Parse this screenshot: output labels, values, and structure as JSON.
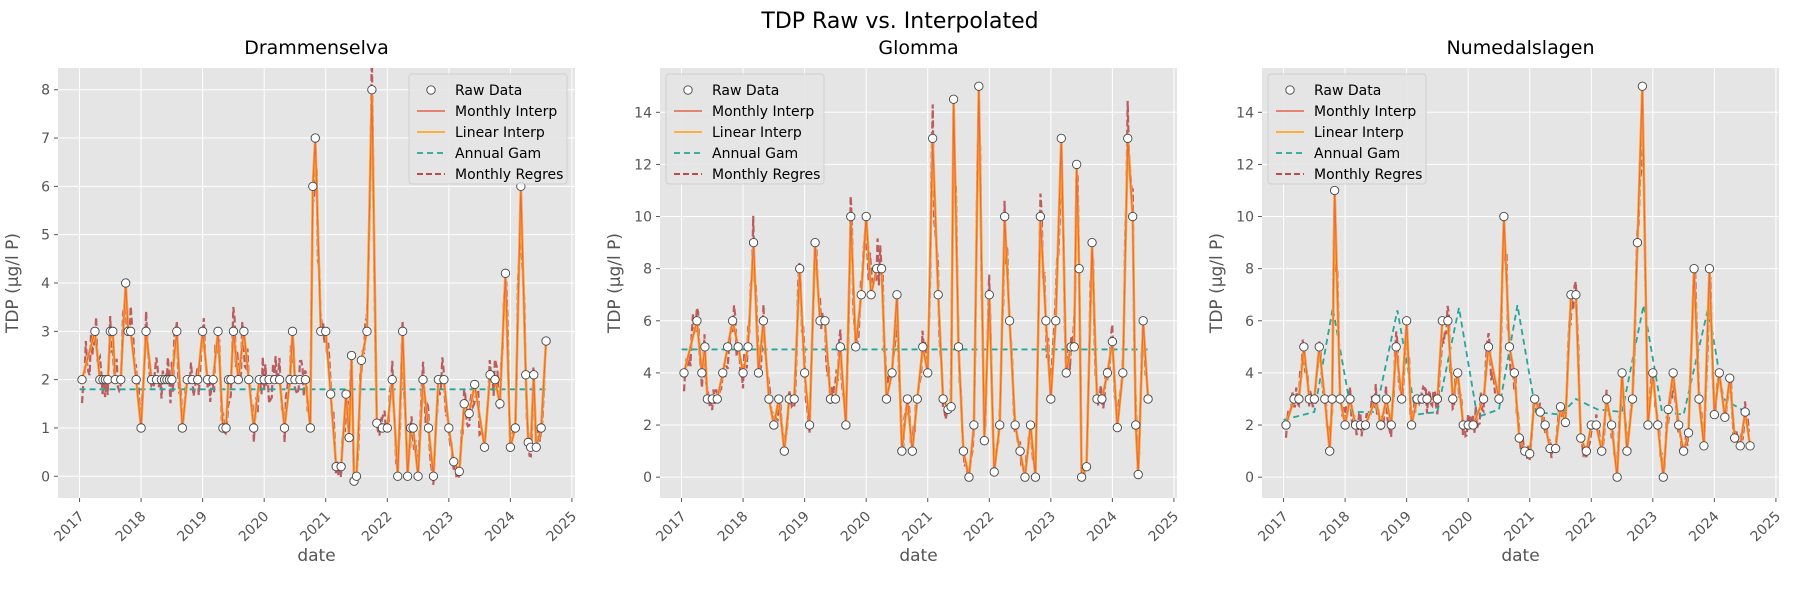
{
  "figure": {
    "suptitle": "TDP Raw vs. Interpolated"
  },
  "colors": {
    "raw": "#ffffff",
    "raw_edge": "#444444",
    "monthly_interp": "#e5624f",
    "linear_interp": "#ffa726",
    "annual_gam": "#26a69a",
    "monthly_regres": "#b84c4c",
    "panel_bg": "#e5e5e5",
    "grid": "#ffffff"
  },
  "legend": {
    "placement": "upper",
    "entries": [
      "Raw Data",
      "Monthly Interp",
      "Linear Interp",
      "Annual Gam",
      "Monthly Regres"
    ]
  },
  "chart_data": [
    {
      "type": "line",
      "title": "Drammenselva",
      "xlabel": "date",
      "ylabel": "TDP (µg/l P)",
      "xlim": [
        2016.65,
        2025.05
      ],
      "ylim": [
        -0.45,
        8.45
      ],
      "xticks": [
        2017,
        2018,
        2019,
        2020,
        2021,
        2022,
        2023,
        2024,
        2025
      ],
      "yticks": [
        0,
        1,
        2,
        3,
        4,
        5,
        6,
        7,
        8
      ],
      "legend_position": "top-right",
      "raw": {
        "x": [
          2017.04,
          2017.25,
          2017.33,
          2017.38,
          2017.42,
          2017.46,
          2017.5,
          2017.54,
          2017.58,
          2017.67,
          2017.75,
          2017.79,
          2017.83,
          2017.92,
          2018.0,
          2018.08,
          2018.17,
          2018.25,
          2018.33,
          2018.38,
          2018.42,
          2018.46,
          2018.5,
          2018.58,
          2018.67,
          2018.75,
          2018.83,
          2018.92,
          2019.0,
          2019.08,
          2019.17,
          2019.25,
          2019.33,
          2019.38,
          2019.42,
          2019.46,
          2019.5,
          2019.58,
          2019.67,
          2019.75,
          2019.83,
          2019.92,
          2020.0,
          2020.08,
          2020.17,
          2020.25,
          2020.33,
          2020.42,
          2020.46,
          2020.5,
          2020.58,
          2020.67,
          2020.75,
          2020.79,
          2020.83,
          2020.92,
          2021.0,
          2021.08,
          2021.17,
          2021.25,
          2021.33,
          2021.38,
          2021.42,
          2021.46,
          2021.5,
          2021.58,
          2021.67,
          2021.75,
          2021.83,
          2021.92,
          2022.0,
          2022.08,
          2022.17,
          2022.25,
          2022.33,
          2022.38,
          2022.42,
          2022.5,
          2022.58,
          2022.67,
          2022.75,
          2022.83,
          2022.92,
          2023.0,
          2023.08,
          2023.17,
          2023.25,
          2023.33,
          2023.42,
          2023.58,
          2023.67,
          2023.75,
          2023.83,
          2023.92,
          2024.0,
          2024.08,
          2024.17,
          2024.25,
          2024.29,
          2024.33,
          2024.38,
          2024.42,
          2024.5,
          2024.58
        ],
        "y": [
          2,
          3,
          2,
          2,
          2,
          2,
          3,
          3,
          2,
          2,
          4,
          3,
          3,
          2,
          1,
          3,
          2,
          2,
          2,
          2,
          2,
          2,
          2,
          3,
          1,
          2,
          2,
          2,
          3,
          2,
          2,
          3,
          1,
          1,
          2,
          2,
          3,
          2,
          3,
          2,
          1,
          2,
          2,
          2,
          2,
          2,
          1,
          2,
          3,
          2,
          2,
          2,
          1,
          6,
          7,
          3,
          3,
          1.7,
          0.2,
          0.2,
          1.7,
          0.8,
          2.5,
          -0.1,
          0,
          2.4,
          3,
          8,
          1.1,
          1,
          1,
          2,
          0,
          3,
          0,
          1,
          1,
          0,
          2,
          1,
          0,
          2,
          2,
          1,
          0.3,
          0.1,
          1.5,
          1.3,
          1.9,
          0.6,
          2.1,
          2.0,
          1.5,
          4.2,
          0.6,
          1,
          6,
          2.1,
          0.7,
          0.6,
          2.1,
          0.6,
          1,
          2.8
        ]
      },
      "annual_gam": {
        "x": [
          2017.0,
          2020.5,
          2024.58
        ],
        "y": [
          1.8,
          1.8,
          1.8
        ]
      }
    },
    {
      "type": "line",
      "title": "Glomma",
      "xlabel": "date",
      "ylabel": "TDP (µg/l P)",
      "xlim": [
        2016.65,
        2025.05
      ],
      "ylim": [
        -0.8,
        15.7
      ],
      "xticks": [
        2017,
        2018,
        2019,
        2020,
        2021,
        2022,
        2023,
        2024,
        2025
      ],
      "yticks": [
        0,
        2,
        4,
        6,
        8,
        10,
        12,
        14
      ],
      "legend_position": "top-left",
      "raw": {
        "x": [
          2017.04,
          2017.25,
          2017.33,
          2017.38,
          2017.42,
          2017.5,
          2017.58,
          2017.67,
          2017.75,
          2017.83,
          2017.92,
          2018.0,
          2018.08,
          2018.17,
          2018.25,
          2018.33,
          2018.42,
          2018.5,
          2018.58,
          2018.67,
          2018.75,
          2018.83,
          2018.92,
          2019.0,
          2019.08,
          2019.17,
          2019.25,
          2019.33,
          2019.42,
          2019.5,
          2019.58,
          2019.67,
          2019.75,
          2019.83,
          2019.92,
          2020.0,
          2020.08,
          2020.17,
          2020.25,
          2020.33,
          2020.42,
          2020.5,
          2020.58,
          2020.67,
          2020.75,
          2020.83,
          2020.92,
          2021.0,
          2021.08,
          2021.17,
          2021.25,
          2021.33,
          2021.38,
          2021.42,
          2021.5,
          2021.58,
          2021.67,
          2021.75,
          2021.83,
          2021.92,
          2022.0,
          2022.08,
          2022.17,
          2022.25,
          2022.33,
          2022.42,
          2022.5,
          2022.58,
          2022.67,
          2022.75,
          2022.83,
          2022.92,
          2023.0,
          2023.08,
          2023.17,
          2023.25,
          2023.33,
          2023.38,
          2023.42,
          2023.46,
          2023.5,
          2023.58,
          2023.67,
          2023.75,
          2023.83,
          2023.92,
          2024.0,
          2024.08,
          2024.17,
          2024.25,
          2024.33,
          2024.38,
          2024.42,
          2024.5,
          2024.58
        ],
        "y": [
          4,
          6,
          4,
          5,
          3,
          3,
          3,
          4,
          5,
          6,
          5,
          4,
          5,
          9,
          4,
          6,
          3,
          2,
          3,
          1,
          3,
          3,
          8,
          4,
          2,
          9,
          6,
          6,
          3,
          3,
          5,
          2,
          10,
          5,
          7,
          10,
          7,
          8,
          8,
          3,
          4,
          7,
          1,
          3,
          1,
          3,
          5,
          4,
          13,
          7,
          3,
          2.6,
          2.7,
          14.5,
          5,
          1,
          0,
          2,
          15,
          1.4,
          7,
          0.2,
          2,
          10,
          6,
          2,
          1,
          0,
          2,
          0,
          10,
          6,
          3,
          6,
          13,
          4,
          5,
          5,
          12,
          8,
          0,
          0.4,
          9,
          3,
          3,
          4,
          5.2,
          1.9,
          4,
          13,
          10,
          2,
          0.1,
          6,
          3
        ]
      },
      "annual_gam": {
        "x": [
          2017.0,
          2024.58
        ],
        "y": [
          4.9,
          4.9
        ]
      }
    },
    {
      "type": "line",
      "title": "Numedalslagen",
      "xlabel": "date",
      "ylabel": "TDP (µg/l P)",
      "xlim": [
        2016.65,
        2025.05
      ],
      "ylim": [
        -0.8,
        15.7
      ],
      "xticks": [
        2017,
        2018,
        2019,
        2020,
        2021,
        2022,
        2023,
        2024,
        2025
      ],
      "yticks": [
        0,
        2,
        4,
        6,
        8,
        10,
        12,
        14
      ],
      "legend_position": "top-left",
      "raw": {
        "x": [
          2017.04,
          2017.17,
          2017.25,
          2017.33,
          2017.42,
          2017.5,
          2017.58,
          2017.67,
          2017.75,
          2017.79,
          2017.83,
          2017.92,
          2018.0,
          2018.08,
          2018.17,
          2018.25,
          2018.33,
          2018.5,
          2018.58,
          2018.67,
          2018.75,
          2018.83,
          2018.92,
          2019.0,
          2019.08,
          2019.17,
          2019.25,
          2019.33,
          2019.5,
          2019.58,
          2019.67,
          2019.75,
          2019.83,
          2019.92,
          2020.0,
          2020.08,
          2020.25,
          2020.33,
          2020.5,
          2020.58,
          2020.67,
          2020.75,
          2020.83,
          2020.92,
          2021.0,
          2021.08,
          2021.17,
          2021.25,
          2021.33,
          2021.42,
          2021.5,
          2021.58,
          2021.67,
          2021.75,
          2021.83,
          2021.92,
          2022.0,
          2022.08,
          2022.17,
          2022.25,
          2022.33,
          2022.42,
          2022.5,
          2022.58,
          2022.67,
          2022.75,
          2022.83,
          2022.92,
          2023.0,
          2023.08,
          2023.17,
          2023.25,
          2023.33,
          2023.42,
          2023.5,
          2023.58,
          2023.67,
          2023.75,
          2023.83,
          2023.92,
          2024.0,
          2024.08,
          2024.17,
          2024.25,
          2024.33,
          2024.42,
          2024.5,
          2024.58
        ],
        "y": [
          2,
          3,
          3,
          5,
          3,
          3,
          5,
          3,
          1,
          3,
          11,
          3,
          2,
          3,
          2,
          2,
          2,
          3,
          2,
          3,
          2,
          5,
          3,
          6,
          2,
          3,
          3,
          3,
          3,
          6,
          6,
          3,
          4,
          2,
          2,
          2,
          3,
          5,
          3,
          10,
          5,
          4,
          1.5,
          1,
          0.9,
          3,
          2.5,
          2,
          1.1,
          1.1,
          2.7,
          2.1,
          7,
          7,
          1.5,
          1,
          2,
          2,
          1,
          3,
          2,
          0,
          4,
          1,
          3,
          9,
          15,
          2,
          4,
          2,
          0,
          2.6,
          4,
          2,
          1,
          1.7,
          8,
          3,
          1.2,
          8,
          2.4,
          4,
          2.3,
          3.8,
          1.5,
          1.2,
          2.5,
          1.2
        ]
      },
      "annual_gam": {
        "x": [
          2017.0,
          2017.5,
          2017.8,
          2018.1,
          2018.5,
          2018.85,
          2019.15,
          2019.5,
          2019.85,
          2020.15,
          2020.5,
          2020.8,
          2021.1,
          2021.5,
          2021.75,
          2022.1,
          2022.5,
          2022.85,
          2023.15,
          2023.5,
          2023.9,
          2024.15,
          2024.58
        ],
        "y": [
          2.2,
          2.5,
          6.5,
          2.5,
          2.5,
          6.4,
          2.4,
          2.5,
          6.5,
          2.3,
          2.6,
          6.6,
          2.5,
          2.4,
          3.0,
          2.6,
          2.5,
          6.6,
          2.5,
          2.4,
          6.5,
          3.0,
          2.4
        ]
      }
    }
  ]
}
